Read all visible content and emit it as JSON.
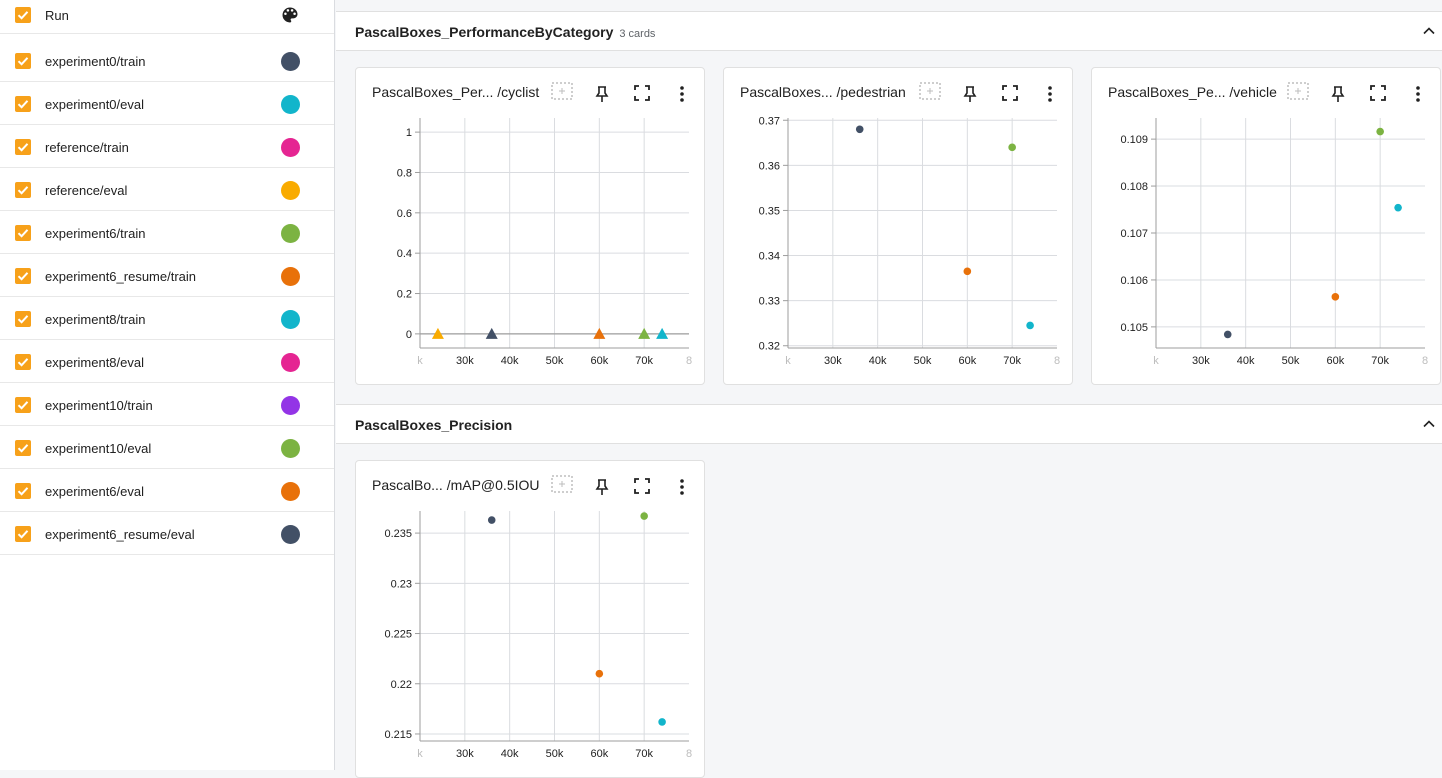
{
  "sidebar": {
    "header_label": "Run",
    "runs": [
      {
        "label": "experiment0/train",
        "color": "#425066"
      },
      {
        "label": "experiment0/eval",
        "color": "#12b5cb"
      },
      {
        "label": "reference/train",
        "color": "#e52592"
      },
      {
        "label": "reference/eval",
        "color": "#f9ab00"
      },
      {
        "label": "experiment6/train",
        "color": "#7cb342"
      },
      {
        "label": "experiment6_resume/train",
        "color": "#e8710a"
      },
      {
        "label": "experiment8/train",
        "color": "#12b5cb"
      },
      {
        "label": "experiment8/eval",
        "color": "#e52592"
      },
      {
        "label": "experiment10/train",
        "color": "#9334e6"
      },
      {
        "label": "experiment10/eval",
        "color": "#7cb342"
      },
      {
        "label": "experiment6/eval",
        "color": "#e8710a"
      },
      {
        "label": "experiment6_resume/eval",
        "color": "#425066"
      }
    ]
  },
  "groups": [
    {
      "title": "PascalBoxes_PerformanceByCategory",
      "count": "3 cards"
    },
    {
      "title": "PascalBoxes_Precision",
      "count": ""
    }
  ],
  "cards": [
    {
      "title": "PascalBoxes_Per... /cyclist"
    },
    {
      "title": "PascalBoxes... /pedestrian"
    },
    {
      "title": "PascalBoxes_Pe... /vehicle"
    },
    {
      "title": "PascalBo... /mAP@0.5IOU"
    }
  ],
  "chart_data": [
    {
      "type": "scatter",
      "title": "PascalBoxes_Per... /cyclist",
      "marker": "triangle",
      "x_ticks": [
        "k",
        "30k",
        "40k",
        "50k",
        "60k",
        "70k",
        "8"
      ],
      "y_ticks": [
        "1",
        "0.8",
        "0.6",
        "0.4",
        "0.2",
        "0"
      ],
      "xlim": [
        20000,
        80000
      ],
      "ylim": [
        -0.07,
        1.07
      ],
      "series": [
        {
          "color": "#f9ab00",
          "points": [
            [
              24000,
              0
            ]
          ]
        },
        {
          "color": "#425066",
          "points": [
            [
              36000,
              0
            ]
          ]
        },
        {
          "color": "#e8710a",
          "points": [
            [
              60000,
              0
            ]
          ]
        },
        {
          "color": "#7cb342",
          "points": [
            [
              70000,
              0
            ]
          ]
        },
        {
          "color": "#12b5cb",
          "points": [
            [
              74000,
              0
            ]
          ]
        }
      ]
    },
    {
      "type": "scatter",
      "title": "PascalBoxes... /pedestrian",
      "marker": "circle",
      "x_ticks": [
        "k",
        "30k",
        "40k",
        "50k",
        "60k",
        "70k",
        "8"
      ],
      "y_ticks": [
        "0.37",
        "0.36",
        "0.35",
        "0.34",
        "0.33",
        "0.32"
      ],
      "xlim": [
        20000,
        80000
      ],
      "ylim": [
        0.3195,
        0.3705
      ],
      "series": [
        {
          "color": "#425066",
          "points": [
            [
              36000,
              0.368
            ]
          ]
        },
        {
          "color": "#7cb342",
          "points": [
            [
              70000,
              0.364
            ]
          ]
        },
        {
          "color": "#e8710a",
          "points": [
            [
              60000,
              0.3365
            ]
          ]
        },
        {
          "color": "#12b5cb",
          "points": [
            [
              74000,
              0.3245
            ]
          ]
        }
      ]
    },
    {
      "type": "scatter",
      "title": "PascalBoxes_Pe... /vehicle",
      "marker": "circle",
      "x_ticks": [
        "k",
        "30k",
        "40k",
        "50k",
        "60k",
        "70k",
        "8"
      ],
      "y_ticks": [
        "0.109",
        "0.108",
        "0.107",
        "0.106",
        "0.105"
      ],
      "xlim": [
        20000,
        80000
      ],
      "ylim": [
        0.10455,
        0.10945
      ],
      "series": [
        {
          "color": "#425066",
          "points": [
            [
              36000,
              0.10484
            ]
          ]
        },
        {
          "color": "#7cb342",
          "points": [
            [
              70000,
              0.10916
            ]
          ]
        },
        {
          "color": "#12b5cb",
          "points": [
            [
              74000,
              0.10754
            ]
          ]
        },
        {
          "color": "#e8710a",
          "points": [
            [
              60000,
              0.10564
            ]
          ]
        }
      ]
    },
    {
      "type": "scatter",
      "title": "PascalBo... /mAP@0.5IOU",
      "marker": "circle",
      "x_ticks": [
        "k",
        "30k",
        "40k",
        "50k",
        "60k",
        "70k",
        "8"
      ],
      "y_ticks": [
        "0.235",
        "0.23",
        "0.225",
        "0.22",
        "0.215"
      ],
      "xlim": [
        20000,
        80000
      ],
      "ylim": [
        0.2143,
        0.2372
      ],
      "series": [
        {
          "color": "#425066",
          "points": [
            [
              36000,
              0.2363
            ]
          ]
        },
        {
          "color": "#7cb342",
          "points": [
            [
              70000,
              0.2367
            ]
          ]
        },
        {
          "color": "#e8710a",
          "points": [
            [
              60000,
              0.221
            ]
          ]
        },
        {
          "color": "#12b5cb",
          "points": [
            [
              74000,
              0.2162
            ]
          ]
        }
      ]
    }
  ]
}
